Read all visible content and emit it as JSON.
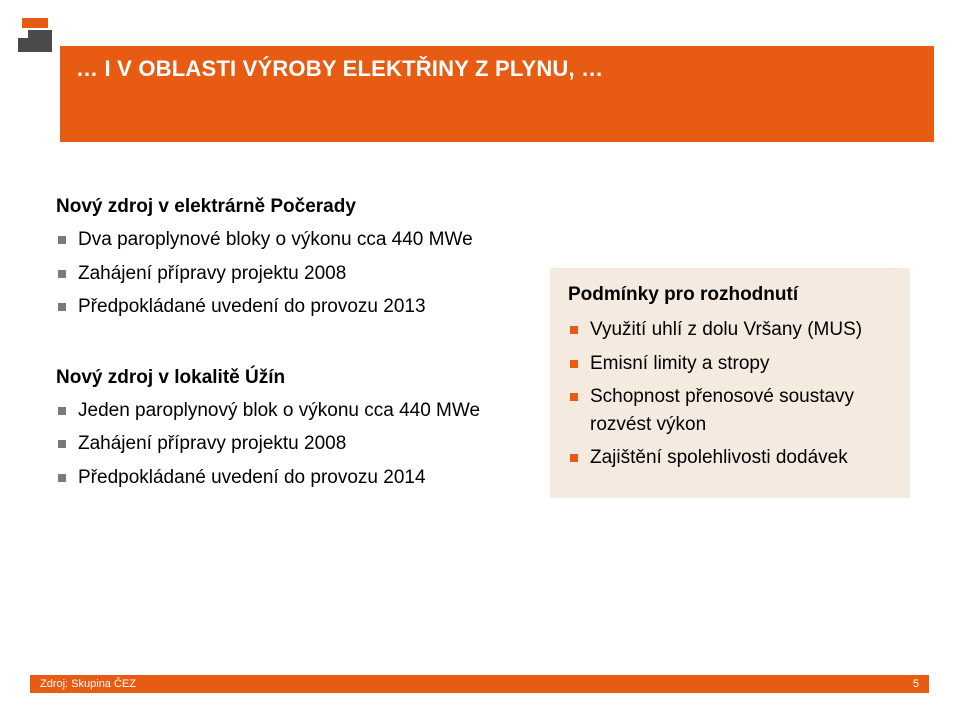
{
  "header": {
    "title": "… I V OBLASTI VÝROBY ELEKTŘINY Z PLYNU, …",
    "band_color": "#e75b13",
    "title_color": "#ffffff",
    "title_fontsize": 22
  },
  "logo": {
    "top_color": "#e75b13",
    "body_color": "#4a4a4a"
  },
  "content": {
    "left_sections": [
      {
        "title": "Nový zdroj v elektrárně Počerady",
        "bullet_color": "#7a7a7a",
        "items": [
          "Dva paroplynové bloky o výkonu cca 440 MWe",
          "Zahájení přípravy projektu 2008",
          "Předpokládané uvedení do provozu 2013"
        ]
      },
      {
        "title": "Nový zdroj v lokalitě Úžín",
        "bullet_color": "#7a7a7a",
        "items": [
          "Jeden paroplynový blok o výkonu cca 440 MWe",
          "Zahájení přípravy projektu 2008",
          "Předpokládané uvedení do provozu 2014"
        ]
      }
    ],
    "right_box": {
      "background": "#f5eae0",
      "title": "Podmínky pro rozhodnutí",
      "bullet_color": "#e75b13",
      "items": [
        "Využití uhlí z dolu Vršany (MUS)",
        "Emisní limity a stropy",
        "Schopnost přenosové soustavy rozvést výkon",
        "Zajištění spolehlivosti dodávek"
      ]
    }
  },
  "footer": {
    "bar_color": "#e75b13",
    "source_label": "Zdroj: Skupina ČEZ",
    "page_num": "5",
    "text_color": "#ffffff",
    "fontsize": 11
  },
  "typography": {
    "body_fontsize": 19,
    "title_fontsize": 19,
    "font_family": "Arial"
  }
}
